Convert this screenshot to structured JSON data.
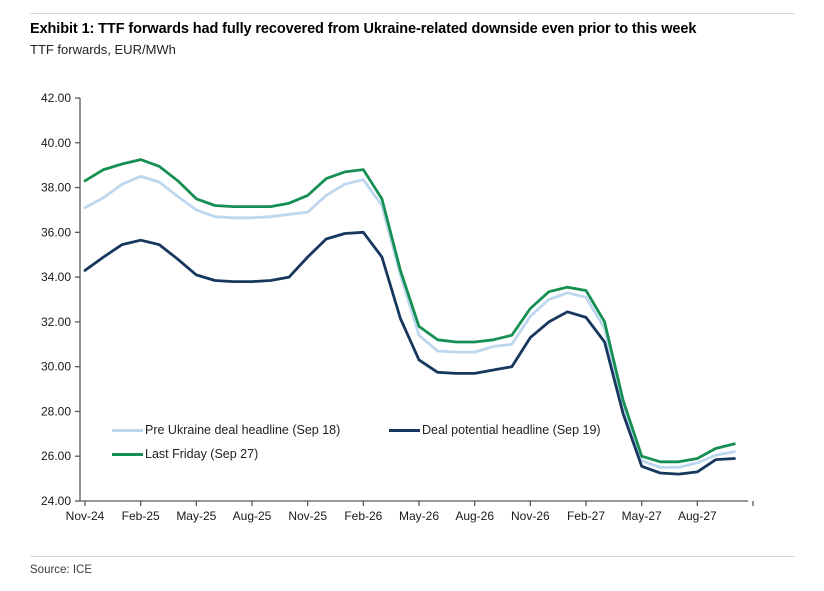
{
  "header": {
    "title": "Exhibit 1: TTF forwards had fully recovered from Ukraine-related downside even prior to this week",
    "subtitle": "TTF forwards, EUR/MWh"
  },
  "footer": {
    "source": "Source: ICE"
  },
  "chart_data": {
    "type": "line",
    "title": "Exhibit 1: TTF forwards had fully recovered from Ukraine-related downside even prior to this week",
    "subtitle": "TTF forwards, EUR/MWh",
    "ylabel": "EUR/MWh",
    "ylim": [
      24,
      42
    ],
    "ytick_step": 2,
    "xtick_every": 3,
    "grid": false,
    "legend_position": "inside-bottom-left",
    "x": [
      "Nov-24",
      "Dec-24",
      "Jan-25",
      "Feb-25",
      "Mar-25",
      "Apr-25",
      "May-25",
      "Jun-25",
      "Jul-25",
      "Aug-25",
      "Sep-25",
      "Oct-25",
      "Nov-25",
      "Dec-25",
      "Jan-26",
      "Feb-26",
      "Mar-26",
      "Apr-26",
      "May-26",
      "Jun-26",
      "Jul-26",
      "Aug-26",
      "Sep-26",
      "Oct-26",
      "Nov-26",
      "Dec-26",
      "Jan-27",
      "Feb-27",
      "Mar-27",
      "Apr-27",
      "May-27",
      "Jun-27",
      "Jul-27",
      "Aug-27",
      "Sep-27",
      "Oct-27"
    ],
    "series": [
      {
        "name": "Pre Ukraine deal headline (Sep 18)",
        "color": "#bdd7ee",
        "values": [
          37.1,
          37.55,
          38.15,
          38.5,
          38.25,
          37.6,
          37.0,
          36.7,
          36.65,
          36.65,
          36.7,
          36.8,
          36.9,
          37.65,
          38.15,
          38.35,
          37.2,
          34.1,
          31.4,
          30.7,
          30.65,
          30.65,
          30.9,
          31.0,
          32.25,
          33.0,
          33.3,
          33.1,
          31.7,
          28.2,
          25.8,
          25.5,
          25.5,
          25.7,
          26.05,
          26.2
        ]
      },
      {
        "name": "Deal potential headline (Sep 19)",
        "color": "#17375e",
        "values": [
          34.3,
          34.9,
          35.45,
          35.65,
          35.45,
          34.8,
          34.1,
          33.85,
          33.8,
          33.8,
          33.85,
          34.0,
          34.9,
          35.7,
          35.95,
          36.0,
          34.9,
          32.15,
          30.3,
          29.75,
          29.7,
          29.7,
          29.85,
          30.0,
          31.3,
          32.0,
          32.45,
          32.2,
          31.1,
          27.9,
          25.55,
          25.25,
          25.2,
          25.3,
          25.85,
          25.9
        ]
      },
      {
        "name": "Last Friday (Sep 27)",
        "color": "#168f52",
        "values": [
          38.3,
          38.8,
          39.05,
          39.25,
          38.95,
          38.3,
          37.5,
          37.2,
          37.15,
          37.15,
          37.15,
          37.3,
          37.65,
          38.4,
          38.7,
          38.8,
          37.5,
          34.3,
          31.8,
          31.2,
          31.1,
          31.1,
          31.2,
          31.4,
          32.6,
          33.35,
          33.55,
          33.4,
          32.0,
          28.5,
          26.0,
          25.75,
          25.75,
          25.9,
          26.35,
          26.55
        ]
      }
    ],
    "legend_order": [
      0,
      1,
      2
    ]
  }
}
